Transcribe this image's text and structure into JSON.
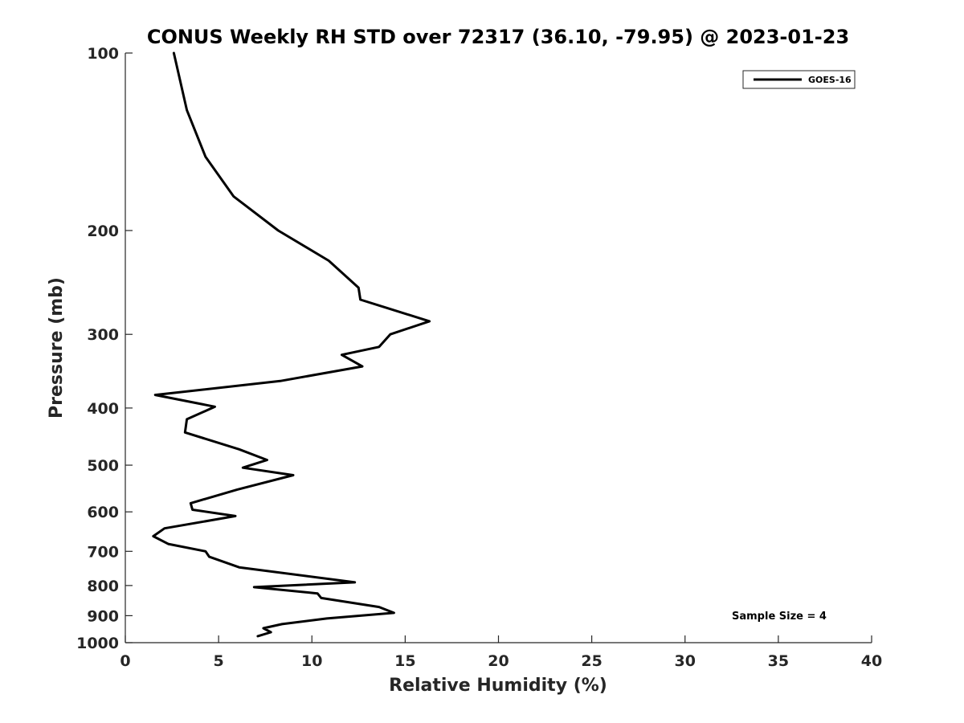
{
  "chart_data": {
    "type": "line",
    "title": "CONUS Weekly RH STD over 72317 (36.10, -79.95) @ 2023-01-23",
    "xlabel": "Relative Humidity (%)",
    "ylabel": "Pressure (mb)",
    "xlim": [
      0,
      40
    ],
    "ylim": [
      100,
      1000
    ],
    "yscale": "log",
    "y_reversed": true,
    "xticks": [
      0,
      5,
      10,
      15,
      20,
      25,
      30,
      35,
      40
    ],
    "yticks": [
      100,
      200,
      300,
      400,
      500,
      600,
      700,
      800,
      900,
      1000
    ],
    "grid": false,
    "legend": "top-right",
    "annotation": "Sample Size = 4",
    "series": [
      {
        "name": "GOES-16",
        "color": "#000000",
        "points": [
          [
            2.6,
            100
          ],
          [
            3.3,
            125
          ],
          [
            4.3,
            150
          ],
          [
            5.8,
            175
          ],
          [
            8.2,
            200
          ],
          [
            10.9,
            225
          ],
          [
            12.5,
            250
          ],
          [
            12.6,
            262
          ],
          [
            16.3,
            285
          ],
          [
            14.2,
            300
          ],
          [
            13.6,
            315
          ],
          [
            11.6,
            325
          ],
          [
            12.7,
            340
          ],
          [
            8.3,
            360
          ],
          [
            1.6,
            380
          ],
          [
            4.8,
            398
          ],
          [
            3.3,
            418
          ],
          [
            3.2,
            440
          ],
          [
            6.1,
            470
          ],
          [
            7.6,
            490
          ],
          [
            6.3,
            505
          ],
          [
            9.0,
            520
          ],
          [
            6.0,
            550
          ],
          [
            3.5,
            580
          ],
          [
            3.6,
            595
          ],
          [
            5.9,
            610
          ],
          [
            2.1,
            640
          ],
          [
            1.5,
            660
          ],
          [
            2.3,
            680
          ],
          [
            4.3,
            700
          ],
          [
            4.5,
            715
          ],
          [
            6.1,
            745
          ],
          [
            12.3,
            790
          ],
          [
            6.9,
            805
          ],
          [
            10.3,
            825
          ],
          [
            10.5,
            840
          ],
          [
            13.6,
            870
          ],
          [
            14.4,
            890
          ],
          [
            10.8,
            910
          ],
          [
            8.4,
            930
          ],
          [
            7.4,
            945
          ],
          [
            7.8,
            960
          ],
          [
            7.1,
            975
          ]
        ]
      }
    ]
  }
}
